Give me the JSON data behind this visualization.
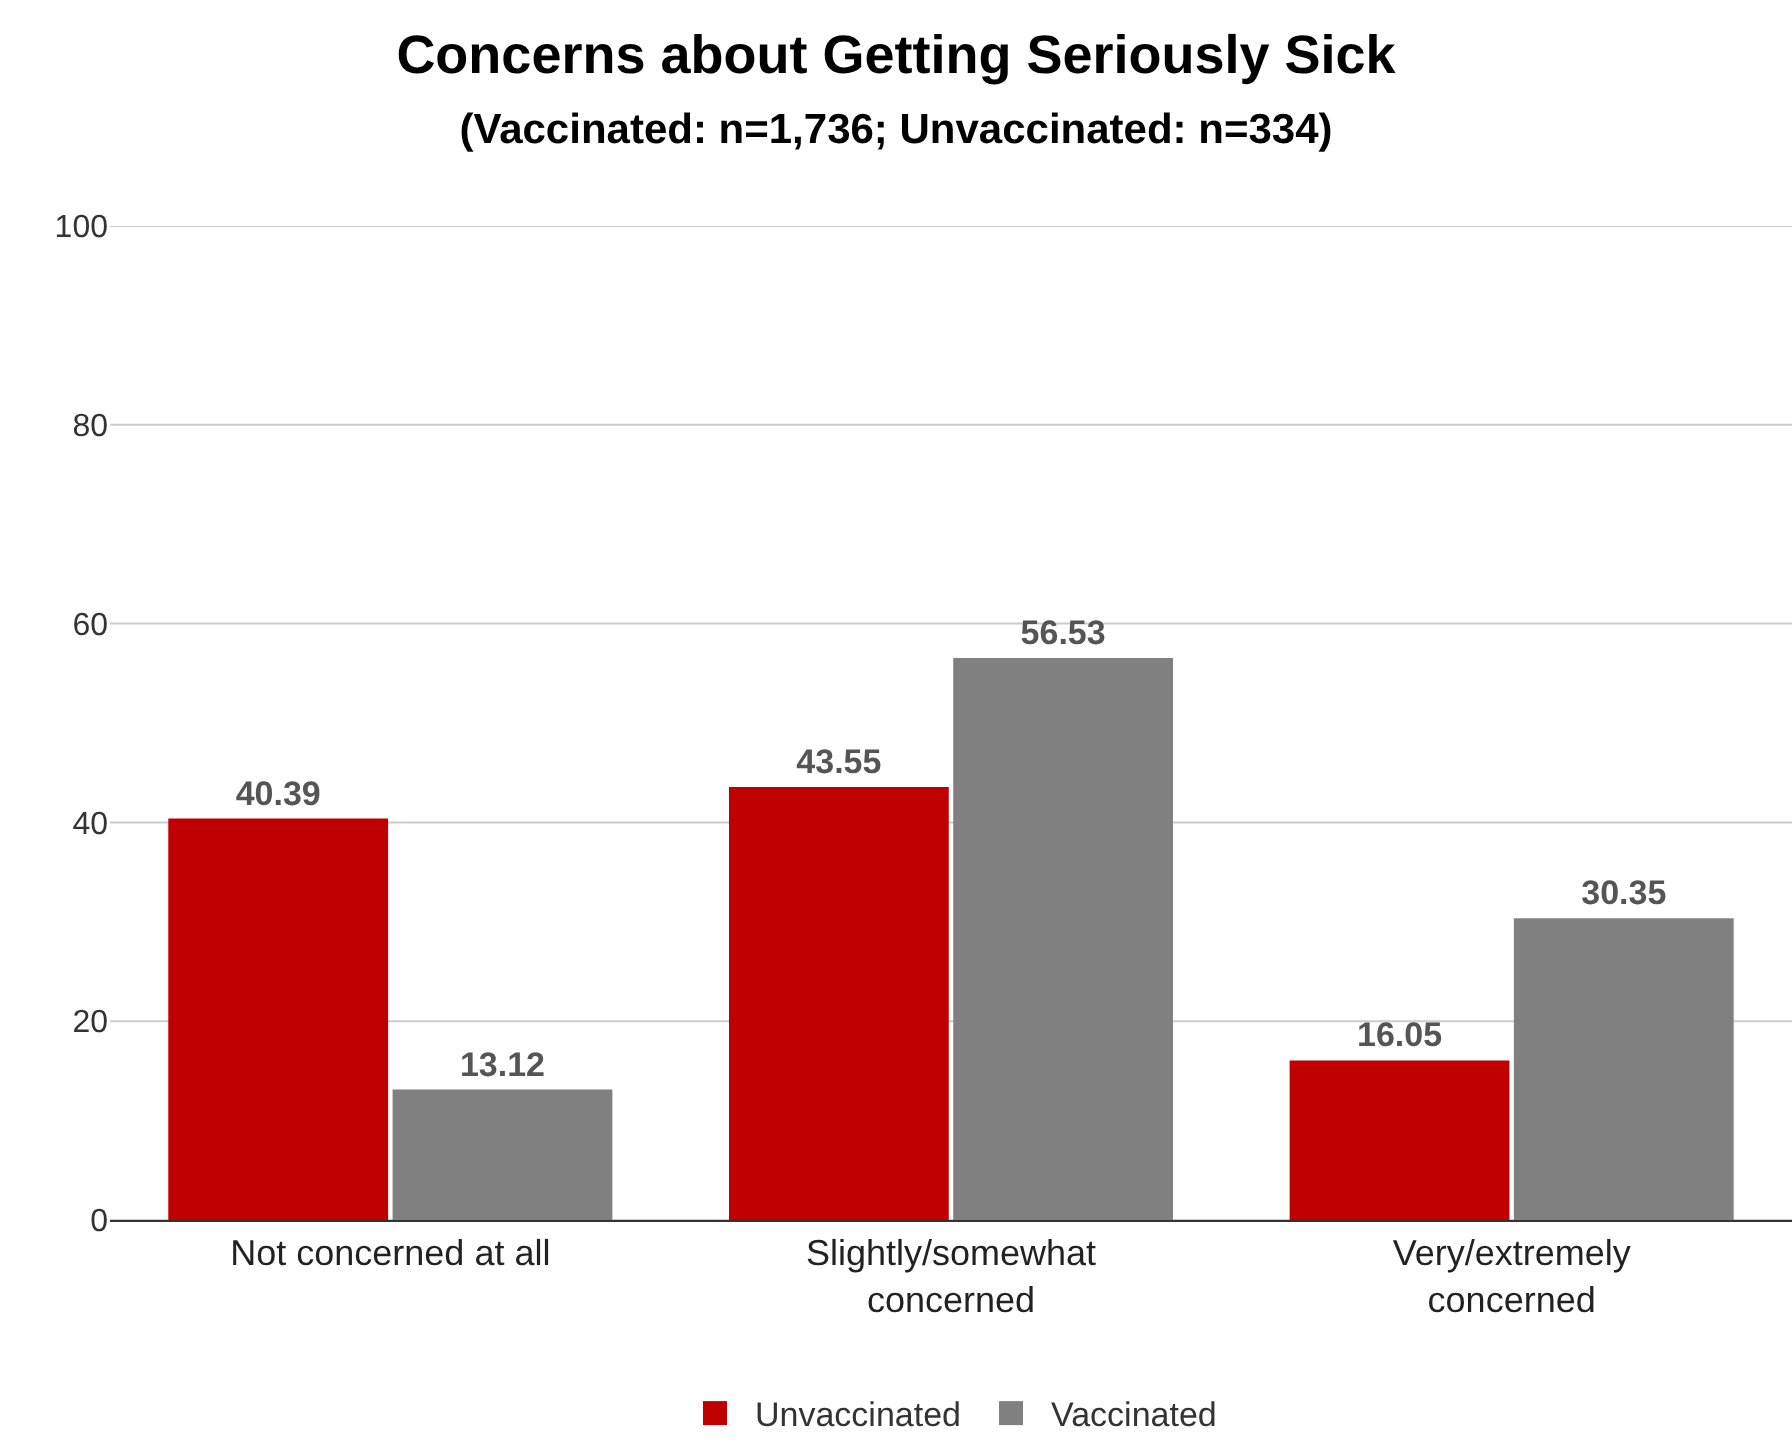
{
  "chart_data": {
    "type": "bar",
    "title": "Concerns about Getting Seriously Sick",
    "subtitle": "(Vaccinated: n=1,736; Unvaccinated: n=334)",
    "categories": [
      "Not concerned at all",
      "Slightly/somewhat concerned",
      "Very/extremely concerned"
    ],
    "series": [
      {
        "name": "Unvaccinated",
        "color": "#c00000",
        "values": [
          40.39,
          43.55,
          16.05
        ]
      },
      {
        "name": "Vaccinated",
        "color": "#808080",
        "values": [
          13.12,
          56.53,
          30.35
        ]
      }
    ],
    "ylim": [
      0,
      100
    ],
    "yticks": [
      0,
      20,
      40,
      60,
      80,
      100
    ],
    "grid": "y",
    "legend": "bottom",
    "data_labels": true
  }
}
